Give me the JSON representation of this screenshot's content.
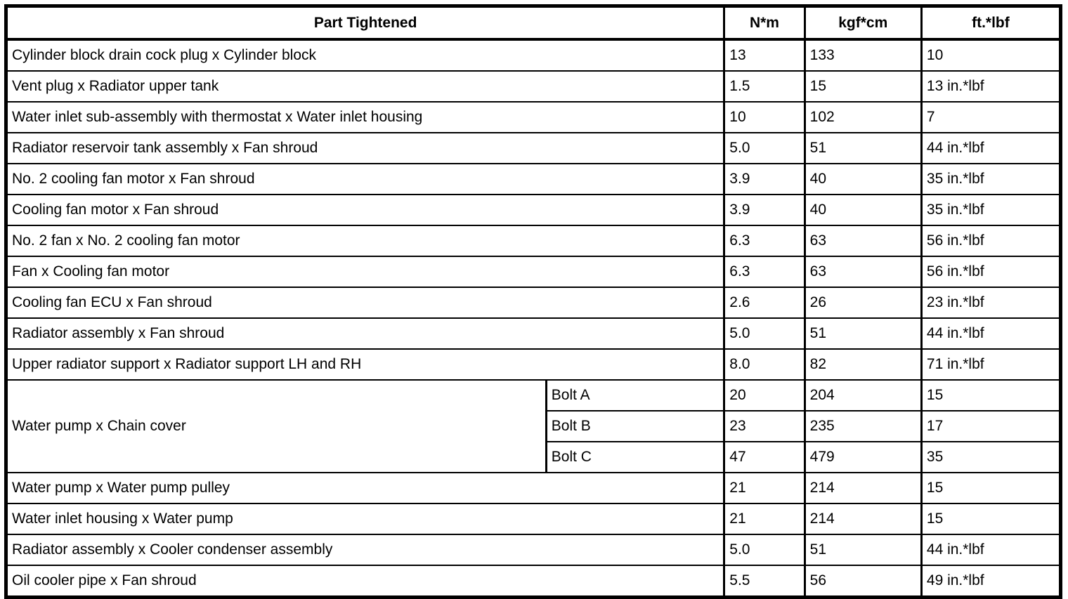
{
  "colors": {
    "border": "#000000",
    "background": "#ffffff",
    "text": "#000000"
  },
  "table": {
    "headers": {
      "part": "Part Tightened",
      "nm": "N*m",
      "kgfcm": "kgf*cm",
      "ftlbf": "ft.*lbf"
    },
    "rows": [
      {
        "part": "Cylinder block drain cock plug x Cylinder block",
        "nm": "13",
        "kgfcm": "133",
        "ftlbf": "10"
      },
      {
        "part": "Vent plug x Radiator upper tank",
        "nm": "1.5",
        "kgfcm": "15",
        "ftlbf": "13 in.*lbf"
      },
      {
        "part": "Water inlet sub-assembly with thermostat x Water inlet housing",
        "nm": "10",
        "kgfcm": "102",
        "ftlbf": "7"
      },
      {
        "part": "Radiator reservoir tank assembly x Fan shroud",
        "nm": "5.0",
        "kgfcm": "51",
        "ftlbf": "44 in.*lbf"
      },
      {
        "part": "No. 2 cooling fan motor x Fan shroud",
        "nm": "3.9",
        "kgfcm": "40",
        "ftlbf": "35 in.*lbf"
      },
      {
        "part": "Cooling fan motor x Fan shroud",
        "nm": "3.9",
        "kgfcm": "40",
        "ftlbf": "35 in.*lbf"
      },
      {
        "part": "No. 2 fan x No. 2 cooling fan motor",
        "nm": "6.3",
        "kgfcm": "63",
        "ftlbf": "56 in.*lbf"
      },
      {
        "part": "Fan x Cooling fan motor",
        "nm": "6.3",
        "kgfcm": "63",
        "ftlbf": "56 in.*lbf"
      },
      {
        "part": "Cooling fan ECU x Fan shroud",
        "nm": "2.6",
        "kgfcm": "26",
        "ftlbf": "23 in.*lbf"
      },
      {
        "part": "Radiator assembly x Fan shroud",
        "nm": "5.0",
        "kgfcm": "51",
        "ftlbf": "44 in.*lbf"
      },
      {
        "part": "Upper radiator support x Radiator support LH and RH",
        "nm": "8.0",
        "kgfcm": "82",
        "ftlbf": "71 in.*lbf"
      },
      {
        "part": "Water pump x Chain cover",
        "subrows": [
          {
            "label": "Bolt A",
            "nm": "20",
            "kgfcm": "204",
            "ftlbf": "15"
          },
          {
            "label": "Bolt B",
            "nm": "23",
            "kgfcm": "235",
            "ftlbf": "17"
          },
          {
            "label": "Bolt C",
            "nm": "47",
            "kgfcm": "479",
            "ftlbf": "35"
          }
        ]
      },
      {
        "part": "Water pump x Water pump pulley",
        "nm": "21",
        "kgfcm": "214",
        "ftlbf": "15"
      },
      {
        "part": "Water inlet housing x Water pump",
        "nm": "21",
        "kgfcm": "214",
        "ftlbf": "15"
      },
      {
        "part": "Radiator assembly x Cooler condenser assembly",
        "nm": "5.0",
        "kgfcm": "51",
        "ftlbf": "44 in.*lbf"
      },
      {
        "part": "Oil cooler pipe x Fan shroud",
        "nm": "5.5",
        "kgfcm": "56",
        "ftlbf": "49 in.*lbf"
      }
    ]
  }
}
